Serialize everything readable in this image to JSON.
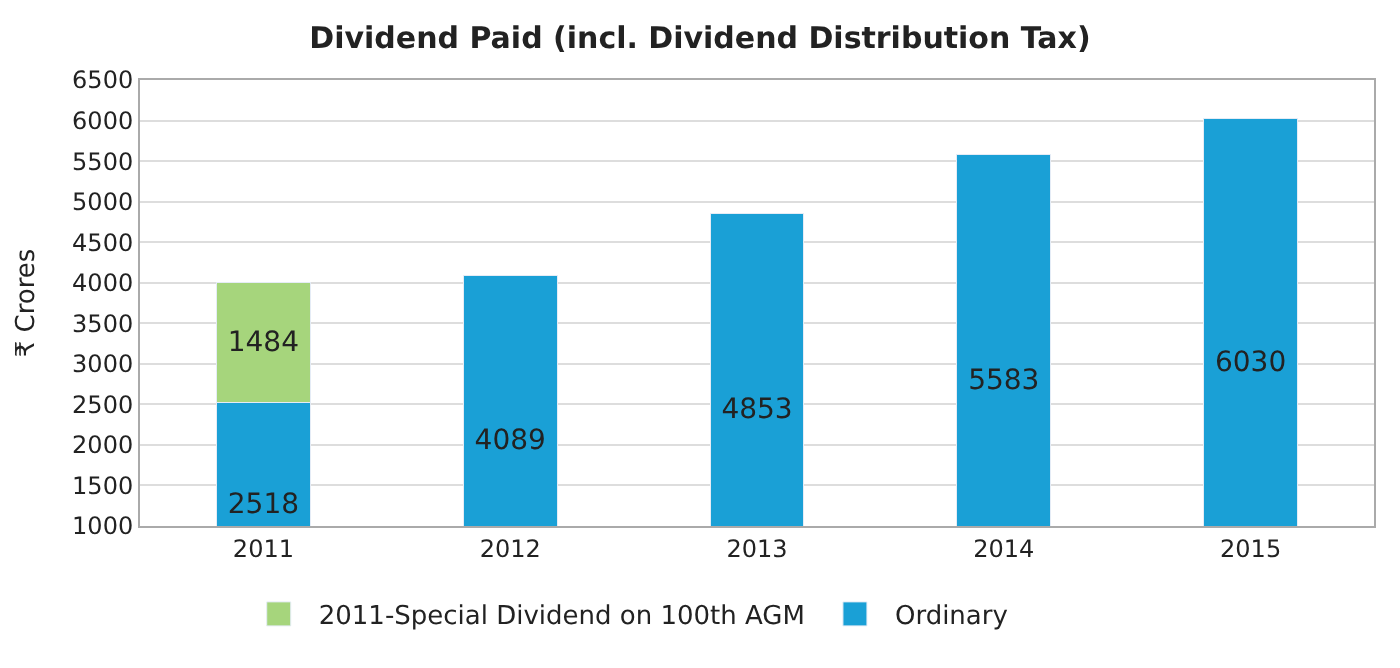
{
  "chart_data": {
    "type": "bar",
    "title": "Dividend Paid (incl. Dividend Distribution Tax)",
    "ylabel": "₹ Crores",
    "categories": [
      "2011",
      "2012",
      "2013",
      "2014",
      "2015"
    ],
    "stacked": true,
    "data_labels": true,
    "series": [
      {
        "name": "Ordinary",
        "color": "#1aa0d6",
        "values": [
          2518,
          4089,
          4853,
          5583,
          6030
        ]
      },
      {
        "name": "2011-Special Dividend on 100th AGM",
        "color": "#a6d57c",
        "values": [
          1484,
          null,
          null,
          null,
          null
        ]
      }
    ],
    "ylim": [
      1000,
      6500
    ],
    "yticks": [
      1000,
      1500,
      2000,
      2500,
      3000,
      3500,
      4000,
      4500,
      5000,
      5500,
      6000,
      6500
    ],
    "grid": "y",
    "legend": "bottom"
  }
}
